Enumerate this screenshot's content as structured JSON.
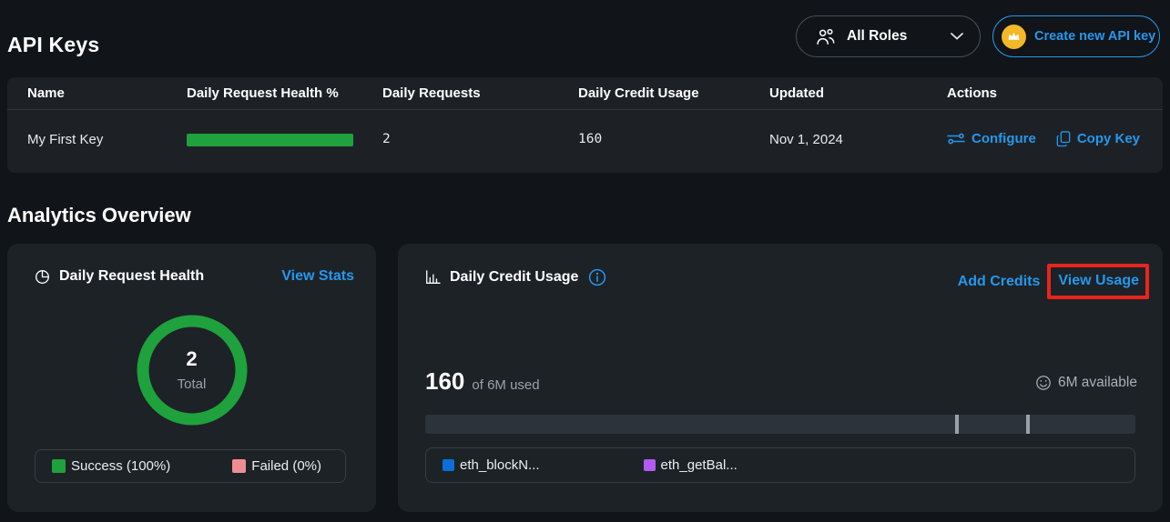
{
  "header": {
    "title": "API Keys",
    "roles_filter": {
      "value": "All Roles",
      "icon": "people-icon"
    },
    "create_button": {
      "label": "Create new API key",
      "icon": "crown-icon",
      "accent_color": "#2598ec",
      "badge_color": "#f3b728"
    }
  },
  "table": {
    "columns": [
      "Name",
      "Daily Request Health %",
      "Daily Requests",
      "Daily Credit Usage",
      "Updated",
      "Actions"
    ],
    "rows": [
      {
        "name": "My First Key",
        "health_pct": 100,
        "health_color": "#1fa13d",
        "daily_requests": "2",
        "daily_credit_usage": "160",
        "updated": "Nov 1, 2024",
        "actions": {
          "configure": "Configure",
          "copy": "Copy Key"
        }
      }
    ]
  },
  "analytics": {
    "section_title": "Analytics Overview",
    "request_health": {
      "title": "Daily Request Health",
      "view_stats_label": "View Stats",
      "donut": {
        "type": "donut",
        "total_value": "2",
        "total_label": "Total",
        "series": [
          {
            "name": "Success",
            "pct": 100,
            "color": "#1fa13d"
          },
          {
            "name": "Failed",
            "pct": 0,
            "color": "#ef8d95"
          }
        ]
      },
      "legend": [
        {
          "label": "Success (100%)",
          "color": "#1fa13d"
        },
        {
          "label": "Failed (0%)",
          "color": "#ef8d95"
        }
      ]
    },
    "credit_usage": {
      "title": "Daily Credit Usage",
      "add_credits_label": "Add Credits",
      "view_usage_label": "View Usage",
      "used_value": "160",
      "used_suffix": "of 6M used",
      "available_label": "6M available",
      "bar": {
        "track_color": "#2d333a",
        "ticks_pct": [
          74.6,
          84.6
        ]
      },
      "legend": [
        {
          "label": "eth_blockN...",
          "color": "#0d6ed8"
        },
        {
          "label": "eth_getBal...",
          "color": "#b45af2"
        }
      ],
      "annotation": {
        "shape": "red-highlight-box",
        "around": "View Usage",
        "color": "#e8251d"
      }
    }
  }
}
